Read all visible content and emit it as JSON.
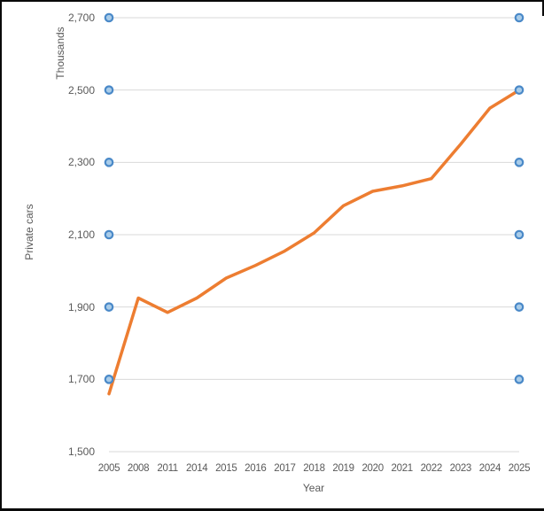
{
  "chart_data": {
    "type": "line",
    "title": "",
    "xlabel": "Year",
    "ylabel": "Private cars",
    "y_units_label": "Thousands",
    "categories": [
      "2005",
      "2008",
      "2011",
      "2014",
      "2015",
      "2016",
      "2017",
      "2018",
      "2019",
      "2020",
      "2021",
      "2022",
      "2023",
      "2024",
      "2025"
    ],
    "series": [
      {
        "name": "Private cars (thousands)",
        "values": [
          1660,
          1925,
          1885,
          1925,
          1980,
          2015,
          2055,
          2105,
          2180,
          2220,
          2235,
          2255,
          2350,
          2450,
          2500
        ]
      }
    ],
    "yticks": [
      2700,
      2500,
      2300,
      2100,
      1900,
      1700,
      1500
    ],
    "ytick_labels": [
      "2,700",
      "2,500",
      "2,300",
      "2,100",
      "1,900",
      "1,700",
      "1,500"
    ],
    "ylim": [
      1500,
      2700
    ],
    "grid": true,
    "legend": "none",
    "gridline_endpoint_marker_values": [
      2700,
      2500,
      2300,
      2100,
      1900,
      1700
    ],
    "colors": {
      "line": "#ED7D31",
      "marker_border": "#4A89C8",
      "marker_fill": "#A9CCE9",
      "gridline": "#D9D9D9",
      "axis_text": "#595959",
      "background": "#FFFFFF",
      "frame": "#0A0A0A"
    }
  }
}
